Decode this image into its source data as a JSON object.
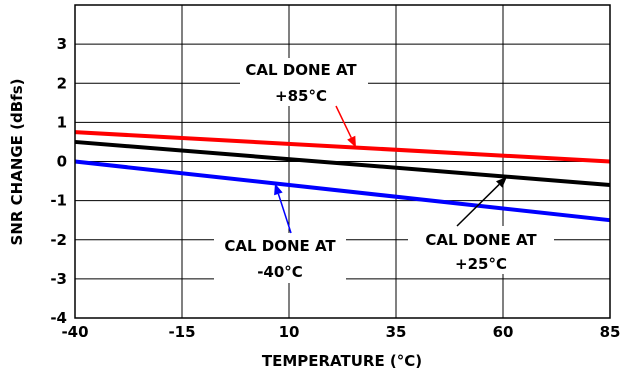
{
  "chart_data": {
    "type": "line",
    "title": "",
    "xlabel": "TEMPERATURE (°C)",
    "ylabel": "SNR CHANGE (dBfs)",
    "xlim": [
      -40,
      85
    ],
    "ylim": [
      -4,
      4
    ],
    "x_ticks": [
      "-40",
      "-15",
      "10",
      "35",
      "60",
      "85"
    ],
    "x_tick_values": [
      -40,
      -15,
      10,
      35,
      60,
      85
    ],
    "y_ticks": [
      "-4",
      "-3",
      "-2",
      "-1",
      "0",
      "1",
      "2",
      "3"
    ],
    "y_tick_values": [
      -4,
      -3,
      -2,
      -1,
      0,
      1,
      2,
      3
    ],
    "grid": true,
    "legend": "none",
    "series": [
      {
        "name": "CAL DONE AT +85°C",
        "color": "#ff0000",
        "x": [
          -40,
          85
        ],
        "y": [
          0.75,
          0.0
        ]
      },
      {
        "name": "CAL DONE AT +25°C",
        "color": "#000000",
        "x": [
          -40,
          85
        ],
        "y": [
          0.5,
          -0.6
        ]
      },
      {
        "name": "CAL DONE AT -40°C",
        "color": "#0000ff",
        "x": [
          -40,
          85
        ],
        "y": [
          0.0,
          -1.5
        ]
      }
    ],
    "annotations": [
      {
        "line1": "CAL DONE AT",
        "line2": "+85°C",
        "series_index": 0
      },
      {
        "line1": "CAL DONE AT",
        "line2": "-40°C",
        "series_index": 2
      },
      {
        "line1": "CAL DONE AT",
        "line2": "+25°C",
        "series_index": 1
      }
    ]
  }
}
